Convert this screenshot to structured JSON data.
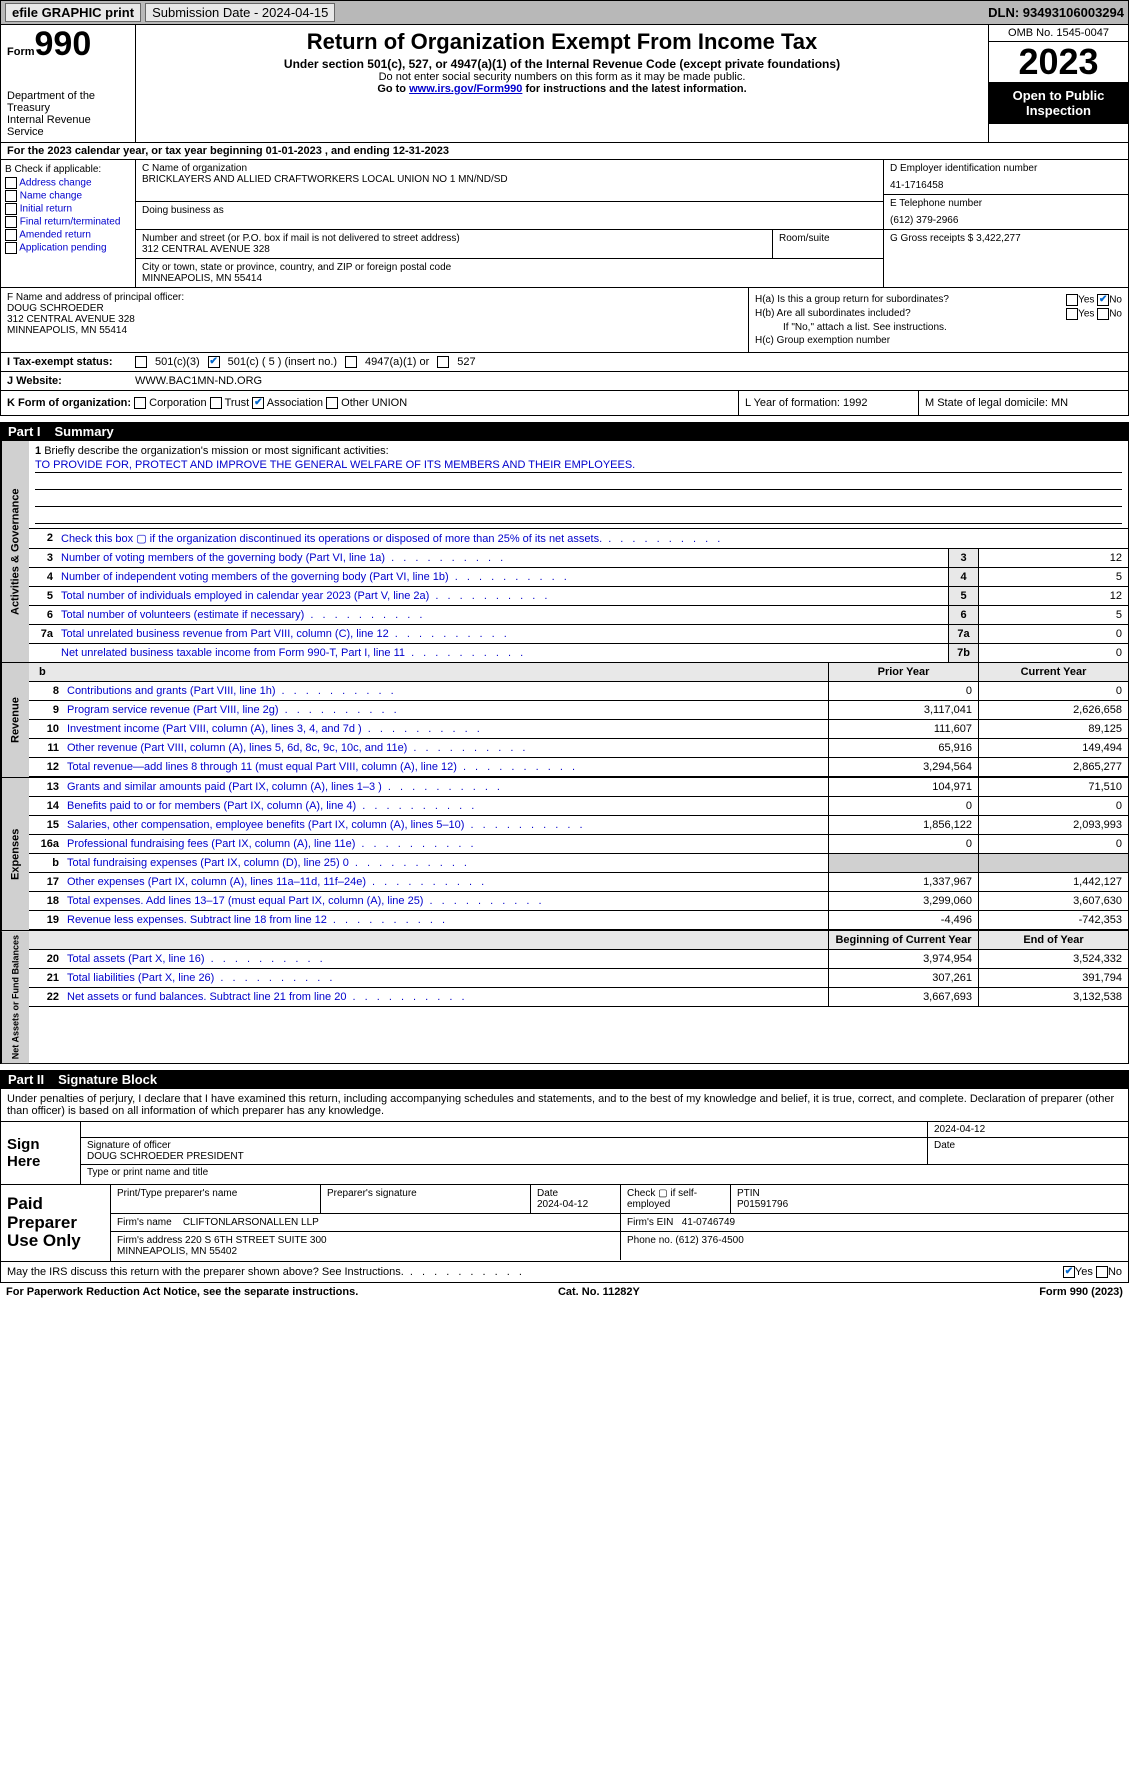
{
  "topbar": {
    "efile": "efile GRAPHIC print",
    "submission": "Submission Date - 2024-04-15",
    "dln": "DLN: 93493106003294"
  },
  "header": {
    "form_word": "Form",
    "form_num": "990",
    "dept": "Department of the Treasury\nInternal Revenue Service",
    "title": "Return of Organization Exempt From Income Tax",
    "sub1": "Under section 501(c), 527, or 4947(a)(1) of the Internal Revenue Code (except private foundations)",
    "sub2": "Do not enter social security numbers on this form as it may be made public.",
    "sub3_pre": "Go to ",
    "sub3_link": "www.irs.gov/Form990",
    "sub3_post": " for instructions and the latest information.",
    "omb": "OMB No. 1545-0047",
    "year": "2023",
    "inspect": "Open to Public Inspection"
  },
  "calyear": "For the 2023 calendar year, or tax year beginning 01-01-2023    , and ending 12-31-2023",
  "boxB": {
    "hdr": "B Check if applicable:",
    "opts": [
      "Address change",
      "Name change",
      "Initial return",
      "Final return/terminated",
      "Amended return",
      "Application pending"
    ]
  },
  "boxC": {
    "name_lbl": "C Name of organization",
    "name": "BRICKLAYERS AND ALLIED CRAFTWORKERS LOCAL UNION NO 1 MN/ND/SD",
    "dba_lbl": "Doing business as",
    "dba": "",
    "addr_lbl": "Number and street (or P.O. box if mail is not delivered to street address)",
    "addr": "312 CENTRAL AVENUE 328",
    "room_lbl": "Room/suite",
    "city_lbl": "City or town, state or province, country, and ZIP or foreign postal code",
    "city": "MINNEAPOLIS, MN  55414"
  },
  "boxD": {
    "lbl": "D Employer identification number",
    "val": "41-1716458"
  },
  "boxE": {
    "lbl": "E Telephone number",
    "val": "(612) 379-2966"
  },
  "boxG": {
    "lbl": "G Gross receipts $",
    "val": "3,422,277"
  },
  "boxF": {
    "lbl": "F  Name and address of principal officer:",
    "name": "DOUG SCHROEDER",
    "addr": "312 CENTRAL AVENUE 328\nMINNEAPOLIS, MN  55414"
  },
  "boxH": {
    "a": "H(a)  Is this a group return for subordinates?",
    "b": "H(b)  Are all subordinates included?",
    "b_note": "If \"No,\" attach a list. See instructions.",
    "c": "H(c)  Group exemption number"
  },
  "status": {
    "lbl": "I   Tax-exempt status:",
    "o1": "501(c)(3)",
    "o2": "501(c) ( 5 ) (insert no.)",
    "o3": "4947(a)(1) or",
    "o4": "527"
  },
  "website": {
    "lbl": "J   Website:",
    "val": "WWW.BAC1MN-ND.ORG"
  },
  "korg": {
    "lbl": "K Form of organization:",
    "opts": [
      "Corporation",
      "Trust",
      "Association",
      "Other"
    ],
    "other": "UNION"
  },
  "lyr": {
    "l": "L Year of formation: 1992",
    "m": "M State of legal domicile: MN"
  },
  "part1": {
    "num": "Part I",
    "title": "Summary"
  },
  "mission": {
    "num": "1",
    "q": "Briefly describe the organization's mission or most significant activities:",
    "ans": "TO PROVIDE FOR, PROTECT AND IMPROVE THE GENERAL WELFARE OF ITS MEMBERS AND THEIR EMPLOYEES."
  },
  "gov_lines": [
    {
      "n": "2",
      "t": "Check this box ▢ if the organization discontinued its operations or disposed of more than 25% of its net assets.",
      "box": "",
      "v": ""
    },
    {
      "n": "3",
      "t": "Number of voting members of the governing body (Part VI, line 1a)",
      "box": "3",
      "v": "12"
    },
    {
      "n": "4",
      "t": "Number of independent voting members of the governing body (Part VI, line 1b)",
      "box": "4",
      "v": "5"
    },
    {
      "n": "5",
      "t": "Total number of individuals employed in calendar year 2023 (Part V, line 2a)",
      "box": "5",
      "v": "12"
    },
    {
      "n": "6",
      "t": "Total number of volunteers (estimate if necessary)",
      "box": "6",
      "v": "5"
    },
    {
      "n": "7a",
      "t": "Total unrelated business revenue from Part VIII, column (C), line 12",
      "box": "7a",
      "v": "0"
    },
    {
      "n": "",
      "t": "Net unrelated business taxable income from Form 990-T, Part I, line 11",
      "box": "7b",
      "v": "0"
    }
  ],
  "rev_hdr": {
    "b": "b",
    "c1": "Prior Year",
    "c2": "Current Year"
  },
  "revenue": [
    {
      "n": "8",
      "t": "Contributions and grants (Part VIII, line 1h)",
      "c1": "0",
      "c2": "0"
    },
    {
      "n": "9",
      "t": "Program service revenue (Part VIII, line 2g)",
      "c1": "3,117,041",
      "c2": "2,626,658"
    },
    {
      "n": "10",
      "t": "Investment income (Part VIII, column (A), lines 3, 4, and 7d )",
      "c1": "111,607",
      "c2": "89,125"
    },
    {
      "n": "11",
      "t": "Other revenue (Part VIII, column (A), lines 5, 6d, 8c, 9c, 10c, and 11e)",
      "c1": "65,916",
      "c2": "149,494"
    },
    {
      "n": "12",
      "t": "Total revenue—add lines 8 through 11 (must equal Part VIII, column (A), line 12)",
      "c1": "3,294,564",
      "c2": "2,865,277"
    }
  ],
  "expenses": [
    {
      "n": "13",
      "t": "Grants and similar amounts paid (Part IX, column (A), lines 1–3 )",
      "c1": "104,971",
      "c2": "71,510"
    },
    {
      "n": "14",
      "t": "Benefits paid to or for members (Part IX, column (A), line 4)",
      "c1": "0",
      "c2": "0"
    },
    {
      "n": "15",
      "t": "Salaries, other compensation, employee benefits (Part IX, column (A), lines 5–10)",
      "c1": "1,856,122",
      "c2": "2,093,993"
    },
    {
      "n": "16a",
      "t": "Professional fundraising fees (Part IX, column (A), line 11e)",
      "c1": "0",
      "c2": "0"
    },
    {
      "n": "b",
      "t": "Total fundraising expenses (Part IX, column (D), line 25) 0",
      "c1": "",
      "c2": "",
      "shade": true
    },
    {
      "n": "17",
      "t": "Other expenses (Part IX, column (A), lines 11a–11d, 11f–24e)",
      "c1": "1,337,967",
      "c2": "1,442,127"
    },
    {
      "n": "18",
      "t": "Total expenses. Add lines 13–17 (must equal Part IX, column (A), line 25)",
      "c1": "3,299,060",
      "c2": "3,607,630"
    },
    {
      "n": "19",
      "t": "Revenue less expenses. Subtract line 18 from line 12",
      "c1": "-4,496",
      "c2": "-742,353"
    }
  ],
  "na_hdr": {
    "c1": "Beginning of Current Year",
    "c2": "End of Year"
  },
  "netassets": [
    {
      "n": "20",
      "t": "Total assets (Part X, line 16)",
      "c1": "3,974,954",
      "c2": "3,524,332"
    },
    {
      "n": "21",
      "t": "Total liabilities (Part X, line 26)",
      "c1": "307,261",
      "c2": "391,794"
    },
    {
      "n": "22",
      "t": "Net assets or fund balances. Subtract line 21 from line 20",
      "c1": "3,667,693",
      "c2": "3,132,538"
    }
  ],
  "part2": {
    "num": "Part II",
    "title": "Signature Block"
  },
  "sig_intro": "Under penalties of perjury, I declare that I have examined this return, including accompanying schedules and statements, and to the best of my knowledge and belief, it is true, correct, and complete. Declaration of preparer (other than officer) is based on all information of which preparer has any knowledge.",
  "sign": {
    "here": "Sign Here",
    "date": "2024-04-12",
    "sig_lbl": "Signature of officer",
    "name": "DOUG SCHROEDER PRESIDENT",
    "type_lbl": "Type or print name and title",
    "date_lbl": "Date"
  },
  "prep": {
    "here": "Paid Preparer Use Only",
    "h1": "Print/Type preparer's name",
    "h2": "Preparer's signature",
    "h3": "Date",
    "h3v": "2024-04-12",
    "h4": "Check ▢ if self-employed",
    "h5": "PTIN",
    "h5v": "P01591796",
    "firm_lbl": "Firm's name",
    "firm": "CLIFTONLARSONALLEN LLP",
    "ein_lbl": "Firm's EIN",
    "ein": "41-0746749",
    "addr_lbl": "Firm's address",
    "addr": "220 S 6TH STREET SUITE 300\nMINNEAPOLIS, MN  55402",
    "phone_lbl": "Phone no.",
    "phone": "(612) 376-4500"
  },
  "discuss": "May the IRS discuss this return with the preparer shown above? See Instructions.",
  "footer": {
    "l": "For Paperwork Reduction Act Notice, see the separate instructions.",
    "m": "Cat. No. 11282Y",
    "r": "Form 990 (2023)"
  },
  "vtabs": {
    "gov": "Activities & Governance",
    "rev": "Revenue",
    "exp": "Expenses",
    "na": "Net Assets or Fund Balances"
  }
}
